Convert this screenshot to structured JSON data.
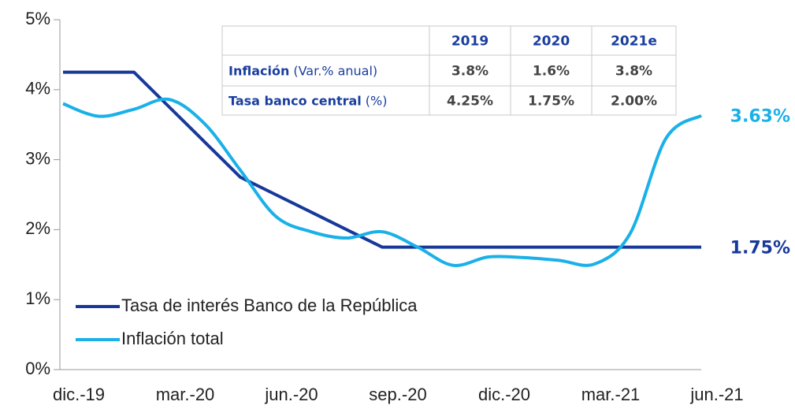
{
  "chart_data": {
    "type": "line",
    "categories": [
      "dic.-19",
      null,
      null,
      "mar.-20",
      null,
      null,
      "jun.-20",
      null,
      null,
      "sep.-20",
      null,
      null,
      "dic.-20",
      null,
      null,
      "mar.-21",
      null,
      null,
      "jun.-21"
    ],
    "series": [
      {
        "name": "Tasa de interés Banco de la República",
        "color": "#17399a",
        "values": [
          4.25,
          4.25,
          4.25,
          3.75,
          3.25,
          2.75,
          2.5,
          2.25,
          2.0,
          1.75,
          1.75,
          1.75,
          1.75,
          1.75,
          1.75,
          1.75,
          1.75,
          1.75,
          1.75
        ]
      },
      {
        "name": "Inflación total",
        "color": "#1ab0e8",
        "values": [
          3.8,
          3.62,
          3.72,
          3.86,
          3.51,
          2.85,
          2.19,
          1.97,
          1.88,
          1.97,
          1.75,
          1.49,
          1.61,
          1.6,
          1.56,
          1.51,
          1.95,
          3.3,
          3.63
        ]
      }
    ],
    "ylim": [
      0,
      5
    ],
    "yticks": [
      {
        "value": 0,
        "label": "0%"
      },
      {
        "value": 1,
        "label": "1%"
      },
      {
        "value": 2,
        "label": "2%"
      },
      {
        "value": 3,
        "label": "3%"
      },
      {
        "value": 4,
        "label": "4%"
      },
      {
        "value": 5,
        "label": "5%"
      }
    ],
    "legend": "lower left",
    "annotations": [
      {
        "label": "3.63%",
        "y": 3.63,
        "series": 1
      },
      {
        "label": "1.75%",
        "y": 1.75,
        "series": 0
      }
    ],
    "table": {
      "columns": [
        "2019",
        "2020",
        "2021e"
      ],
      "rows": [
        {
          "label": "Inflación",
          "unit": "(Var.% anual)",
          "values": [
            "3.8%",
            "1.6%",
            "3.8%"
          ]
        },
        {
          "label": "Tasa banco central",
          "unit": "(%)",
          "values": [
            "4.25%",
            "1.75%",
            "2.00%"
          ]
        }
      ]
    }
  }
}
